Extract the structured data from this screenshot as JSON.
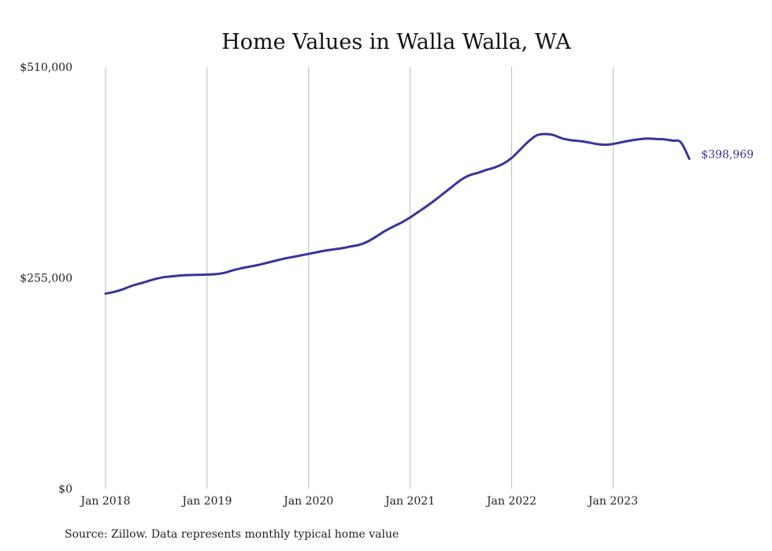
{
  "chart_data": {
    "type": "line",
    "title": "Home Values in Walla Walla, WA",
    "source": "Source: Zillow. Data represents monthly typical home value",
    "colors": {
      "line": "#3a3499",
      "grid": "#bdbdbd",
      "text": "#222222"
    },
    "ylim": [
      0,
      510000
    ],
    "yticks": [
      0,
      255000,
      510000
    ],
    "ytick_labels": [
      "$0",
      "$255,000",
      "$510,000"
    ],
    "xticks": [
      "2018-01",
      "2019-01",
      "2020-01",
      "2021-01",
      "2022-01",
      "2023-01"
    ],
    "xtick_labels": [
      "Jan 2018",
      "Jan 2019",
      "Jan 2020",
      "Jan 2021",
      "Jan 2022",
      "Jan 2023"
    ],
    "xlim": [
      "2018-01",
      "2023-10"
    ],
    "grid": "vertical",
    "end_label": "$398,969",
    "series": [
      {
        "x": [
          "2018-01",
          "2018-02",
          "2018-03",
          "2018-04",
          "2018-05",
          "2018-06",
          "2018-07",
          "2018-08",
          "2018-09",
          "2018-10",
          "2018-11",
          "2018-12",
          "2019-01",
          "2019-02",
          "2019-03",
          "2019-04",
          "2019-05",
          "2019-06",
          "2019-07",
          "2019-08",
          "2019-09",
          "2019-10",
          "2019-11",
          "2019-12",
          "2020-01",
          "2020-02",
          "2020-03",
          "2020-04",
          "2020-05",
          "2020-06",
          "2020-07",
          "2020-08",
          "2020-09",
          "2020-10",
          "2020-11",
          "2020-12",
          "2021-01",
          "2021-02",
          "2021-03",
          "2021-04",
          "2021-05",
          "2021-06",
          "2021-07",
          "2021-08",
          "2021-09",
          "2021-10",
          "2021-11",
          "2021-12",
          "2022-01",
          "2022-02",
          "2022-03",
          "2022-04",
          "2022-05",
          "2022-06",
          "2022-07",
          "2022-08",
          "2022-09",
          "2022-10",
          "2022-11",
          "2022-12",
          "2023-01",
          "2023-02",
          "2023-03",
          "2023-04",
          "2023-05",
          "2023-06",
          "2023-07",
          "2023-08",
          "2023-09",
          "2023-10"
        ],
        "values": [
          236000,
          238000,
          241000,
          245000,
          248000,
          251000,
          254000,
          256000,
          257000,
          258000,
          258500,
          258700,
          259000,
          259500,
          261000,
          264000,
          266500,
          268500,
          270500,
          273000,
          275500,
          278000,
          280000,
          282000,
          284000,
          286000,
          288000,
          289500,
          291000,
          293000,
          295000,
          299000,
          305000,
          311500,
          317000,
          322000,
          328000,
          335000,
          342000,
          349500,
          357500,
          365500,
          373500,
          379000,
          382000,
          385500,
          388500,
          393000,
          400000,
          410000,
          420000,
          427500,
          429000,
          427500,
          423500,
          421500,
          420500,
          419000,
          417000,
          416000,
          417000,
          419000,
          421000,
          422500,
          423500,
          423000,
          422500,
          421000,
          419000,
          398969
        ]
      }
    ]
  }
}
